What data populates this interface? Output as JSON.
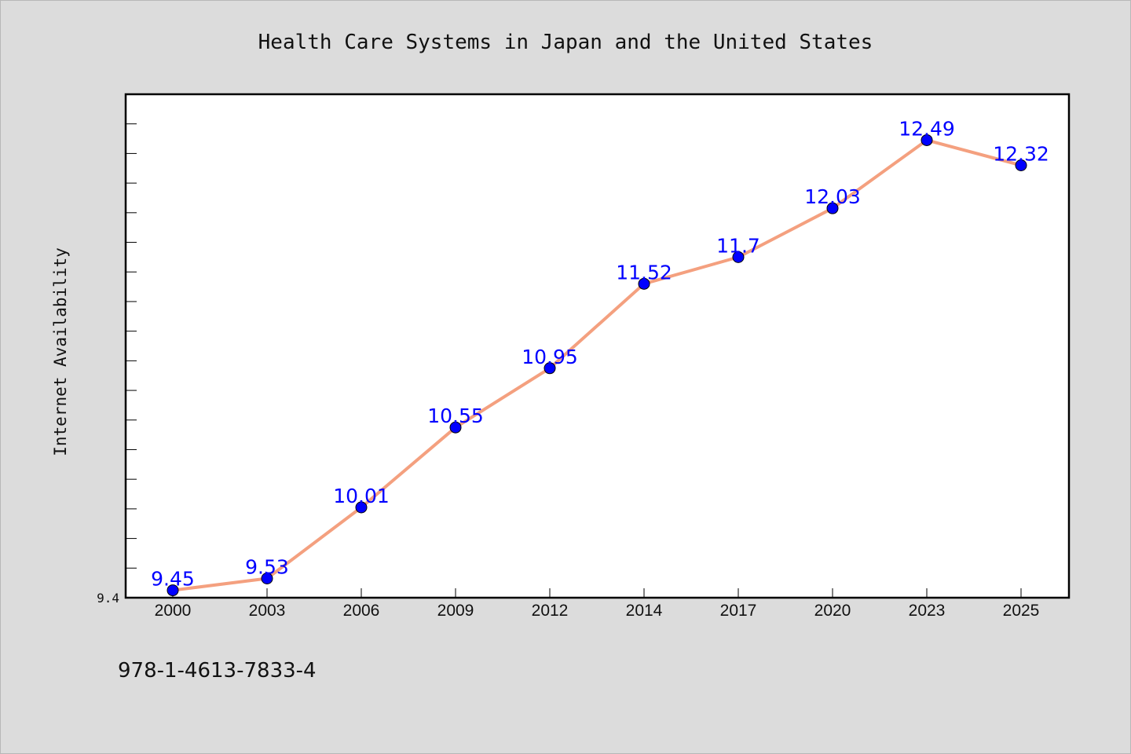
{
  "chart_data": {
    "type": "line",
    "title": "Health Care Systems in Japan and the United States",
    "xlabel": "",
    "ylabel": "Internet Availability",
    "categories": [
      "2000",
      "2003",
      "2006",
      "2009",
      "2012",
      "2014",
      "2017",
      "2020",
      "2023",
      "2025"
    ],
    "values": [
      9.45,
      9.53,
      10.01,
      10.55,
      10.95,
      11.52,
      11.7,
      12.03,
      12.49,
      12.32
    ],
    "data_labels": [
      "9.45",
      "9.53",
      "10.01",
      "10.55",
      "10.95",
      "11.52",
      "11.7",
      "12.03",
      "12.49",
      "12.32"
    ],
    "ylim": [
      9.4,
      12.8
    ],
    "y_tick_labels": [
      "9.4"
    ],
    "line_color": "#f4a07f",
    "marker_color": "#0000ff",
    "label_color": "#0000ff",
    "grid": false
  },
  "footer": {
    "isbn": "978-1-4613-7833-4"
  }
}
